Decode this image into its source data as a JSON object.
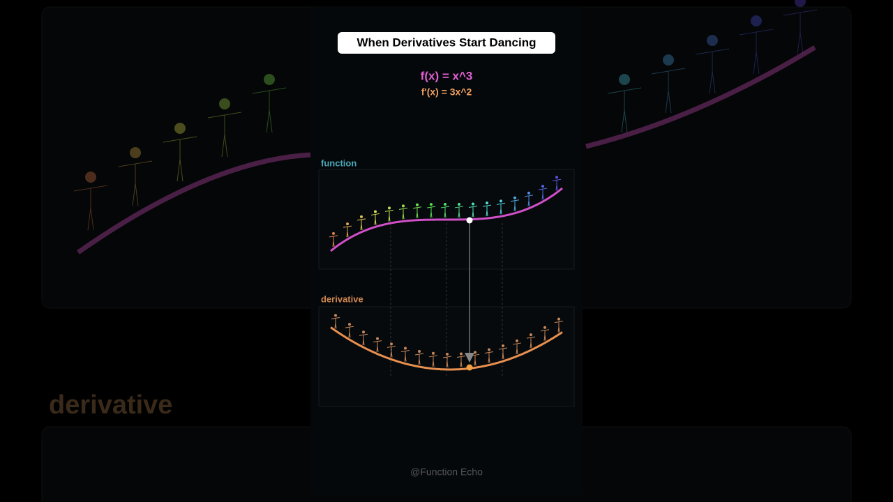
{
  "header": {
    "title": "When Derivatives Start Dancing"
  },
  "formulas": {
    "function": "f(x) = x^3",
    "derivative": "f'(x) = 3x^2"
  },
  "panels": {
    "function_label": "function",
    "derivative_label": "derivative"
  },
  "background": {
    "label": "derivative"
  },
  "watermark": "@Function Echo"
}
